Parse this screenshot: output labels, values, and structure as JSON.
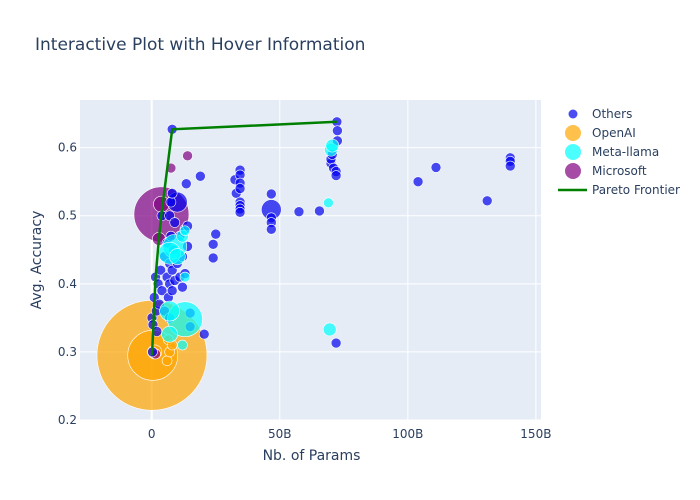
{
  "chart_data": {
    "type": "scatter",
    "title": "Interactive Plot with Hover Information",
    "xlabel": "Nb. of Params",
    "ylabel": "Avg. Accuracy",
    "xlim": [
      -28,
      152
    ],
    "ylim": [
      0.2,
      0.67
    ],
    "x_ticks": [
      0,
      50,
      100,
      150
    ],
    "x_tick_labels": [
      "0",
      "50B",
      "100B",
      "150B"
    ],
    "y_ticks": [
      0.2,
      0.3,
      0.4,
      0.5,
      0.6
    ],
    "y_tick_labels": [
      "0.2",
      "0.3",
      "0.4",
      "0.5",
      "0.6"
    ],
    "grid": true,
    "legend_position": "top-right, outside plot",
    "colors": {
      "Others": "#0000ee",
      "OpenAI": "#ffa500",
      "Meta-llama": "#00ffff",
      "Microsoft": "#800080",
      "Pareto Frontier": "#008000",
      "plot_bg": "#e5ecf6",
      "grid": "#ffffff",
      "text": "#2a3f5f"
    },
    "series": [
      {
        "name": "Others",
        "points": [
          {
            "x": 0.1,
            "y": 0.35,
            "s": 1
          },
          {
            "x": 0.3,
            "y": 0.3,
            "s": 1
          },
          {
            "x": 0.5,
            "y": 0.34,
            "s": 1
          },
          {
            "x": 1,
            "y": 0.38,
            "s": 1
          },
          {
            "x": 1.5,
            "y": 0.41,
            "s": 1
          },
          {
            "x": 1.8,
            "y": 0.36,
            "s": 1
          },
          {
            "x": 2,
            "y": 0.33,
            "s": 1
          },
          {
            "x": 2.5,
            "y": 0.4,
            "s": 1
          },
          {
            "x": 3,
            "y": 0.37,
            "s": 1
          },
          {
            "x": 3.5,
            "y": 0.42,
            "s": 1
          },
          {
            "x": 4,
            "y": 0.39,
            "s": 1
          },
          {
            "x": 4,
            "y": 0.5,
            "s": 1
          },
          {
            "x": 5,
            "y": 0.44,
            "s": 1
          },
          {
            "x": 5,
            "y": 0.36,
            "s": 1
          },
          {
            "x": 6,
            "y": 0.46,
            "s": 1
          },
          {
            "x": 6,
            "y": 0.41,
            "s": 1
          },
          {
            "x": 6.5,
            "y": 0.38,
            "s": 1
          },
          {
            "x": 7,
            "y": 0.5,
            "s": 1
          },
          {
            "x": 7,
            "y": 0.43,
            "s": 1
          },
          {
            "x": 7,
            "y": 0.4,
            "s": 1
          },
          {
            "x": 7,
            "y": 0.35,
            "s": 1
          },
          {
            "x": 7.5,
            "y": 0.47,
            "s": 1
          },
          {
            "x": 7.5,
            "y": 0.52,
            "s": 1
          },
          {
            "x": 8,
            "y": 0.533,
            "s": 1
          },
          {
            "x": 8,
            "y": 0.627,
            "s": 1
          },
          {
            "x": 8,
            "y": 0.42,
            "s": 1
          },
          {
            "x": 8,
            "y": 0.39,
            "s": 1
          },
          {
            "x": 8.5,
            "y": 0.45,
            "s": 1
          },
          {
            "x": 9,
            "y": 0.49,
            "s": 1
          },
          {
            "x": 9,
            "y": 0.405,
            "s": 1
          },
          {
            "x": 10,
            "y": 0.52,
            "s": 2
          },
          {
            "x": 10,
            "y": 0.43,
            "s": 1
          },
          {
            "x": 11,
            "y": 0.47,
            "s": 1
          },
          {
            "x": 11,
            "y": 0.41,
            "s": 1
          },
          {
            "x": 12,
            "y": 0.44,
            "s": 1
          },
          {
            "x": 12,
            "y": 0.395,
            "s": 1
          },
          {
            "x": 13,
            "y": 0.48,
            "s": 1
          },
          {
            "x": 13,
            "y": 0.415,
            "s": 1
          },
          {
            "x": 13.5,
            "y": 0.547,
            "s": 1
          },
          {
            "x": 14,
            "y": 0.455,
            "s": 1
          },
          {
            "x": 14,
            "y": 0.485,
            "s": 1
          },
          {
            "x": 15,
            "y": 0.357,
            "s": 1
          },
          {
            "x": 15,
            "y": 0.337,
            "s": 1
          },
          {
            "x": 19,
            "y": 0.558,
            "s": 1
          },
          {
            "x": 20.5,
            "y": 0.326,
            "s": 1
          },
          {
            "x": 24,
            "y": 0.458,
            "s": 1
          },
          {
            "x": 24,
            "y": 0.438,
            "s": 1
          },
          {
            "x": 25,
            "y": 0.473,
            "s": 1
          },
          {
            "x": 32.5,
            "y": 0.553,
            "s": 1
          },
          {
            "x": 33,
            "y": 0.533,
            "s": 1
          },
          {
            "x": 34.5,
            "y": 0.567,
            "s": 1
          },
          {
            "x": 34.5,
            "y": 0.56,
            "s": 1
          },
          {
            "x": 34.5,
            "y": 0.548,
            "s": 1
          },
          {
            "x": 34.5,
            "y": 0.54,
            "s": 1
          },
          {
            "x": 34.5,
            "y": 0.52,
            "s": 1
          },
          {
            "x": 34.5,
            "y": 0.515,
            "s": 1
          },
          {
            "x": 34.5,
            "y": 0.51,
            "s": 1
          },
          {
            "x": 34.5,
            "y": 0.505,
            "s": 1
          },
          {
            "x": 46.7,
            "y": 0.509,
            "s": 2
          },
          {
            "x": 46.7,
            "y": 0.532,
            "s": 1
          },
          {
            "x": 46.7,
            "y": 0.497,
            "s": 1
          },
          {
            "x": 46.7,
            "y": 0.49,
            "s": 1
          },
          {
            "x": 46.7,
            "y": 0.48,
            "s": 1
          },
          {
            "x": 57.5,
            "y": 0.506,
            "s": 1
          },
          {
            "x": 65.5,
            "y": 0.507,
            "s": 1
          },
          {
            "x": 70,
            "y": 0.577,
            "s": 1
          },
          {
            "x": 70,
            "y": 0.583,
            "s": 1
          },
          {
            "x": 70.5,
            "y": 0.59,
            "s": 1
          },
          {
            "x": 71,
            "y": 0.57,
            "s": 1
          },
          {
            "x": 72,
            "y": 0.565,
            "s": 1
          },
          {
            "x": 72,
            "y": 0.559,
            "s": 1
          },
          {
            "x": 72,
            "y": 0.313,
            "s": 1
          },
          {
            "x": 72.3,
            "y": 0.638,
            "s": 1
          },
          {
            "x": 72.5,
            "y": 0.625,
            "s": 1
          },
          {
            "x": 72.5,
            "y": 0.61,
            "s": 1
          },
          {
            "x": 104,
            "y": 0.55,
            "s": 1
          },
          {
            "x": 111,
            "y": 0.571,
            "s": 1
          },
          {
            "x": 131,
            "y": 0.522,
            "s": 1
          },
          {
            "x": 140,
            "y": 0.585,
            "s": 1
          },
          {
            "x": 140,
            "y": 0.58,
            "s": 1
          },
          {
            "x": 140,
            "y": 0.573,
            "s": 1
          }
        ]
      },
      {
        "name": "OpenAI",
        "points": [
          {
            "x": 0.1,
            "y": 0.295,
            "s": 11
          },
          {
            "x": 0.4,
            "y": 0.295,
            "s": 5
          },
          {
            "x": 1.2,
            "y": 0.3,
            "s": 1.4
          },
          {
            "x": 0.2,
            "y": 0.3,
            "s": 1
          },
          {
            "x": 6,
            "y": 0.287,
            "s": 1
          },
          {
            "x": 7,
            "y": 0.3,
            "s": 1
          },
          {
            "x": 6.5,
            "y": 0.318,
            "s": 1
          },
          {
            "x": 8,
            "y": 0.31,
            "s": 1
          }
        ]
      },
      {
        "name": "Meta-llama",
        "points": [
          {
            "x": 7,
            "y": 0.445,
            "s": 2.2
          },
          {
            "x": 9,
            "y": 0.455,
            "s": 2.4
          },
          {
            "x": 10,
            "y": 0.44,
            "s": 1.6
          },
          {
            "x": 12,
            "y": 0.47,
            "s": 1.2
          },
          {
            "x": 13,
            "y": 0.478,
            "s": 1
          },
          {
            "x": 13,
            "y": 0.41,
            "s": 1
          },
          {
            "x": 7,
            "y": 0.36,
            "s": 2
          },
          {
            "x": 13,
            "y": 0.348,
            "s": 3.5
          },
          {
            "x": 7,
            "y": 0.326,
            "s": 1.6
          },
          {
            "x": 12,
            "y": 0.31,
            "s": 1
          },
          {
            "x": 69,
            "y": 0.519,
            "s": 1
          },
          {
            "x": 69.5,
            "y": 0.333,
            "s": 1.3
          },
          {
            "x": 70,
            "y": 0.597,
            "s": 1.3
          },
          {
            "x": 70.5,
            "y": 0.603,
            "s": 1.3
          }
        ]
      },
      {
        "name": "Microsoft",
        "points": [
          {
            "x": 3.8,
            "y": 0.502,
            "s": 5.5
          },
          {
            "x": 3.8,
            "y": 0.517,
            "s": 1.6
          },
          {
            "x": 2.8,
            "y": 0.466,
            "s": 1.3
          },
          {
            "x": 7.5,
            "y": 0.57,
            "s": 1
          },
          {
            "x": 14,
            "y": 0.588,
            "s": 1
          },
          {
            "x": 1.5,
            "y": 0.297,
            "s": 1
          }
        ]
      }
    ],
    "pareto_frontier": {
      "name": "Pareto Frontier",
      "x": [
        0.1,
        1.5,
        2.8,
        3.8,
        8,
        72.3
      ],
      "y": [
        0.295,
        0.41,
        0.466,
        0.502,
        0.627,
        0.638
      ]
    }
  }
}
